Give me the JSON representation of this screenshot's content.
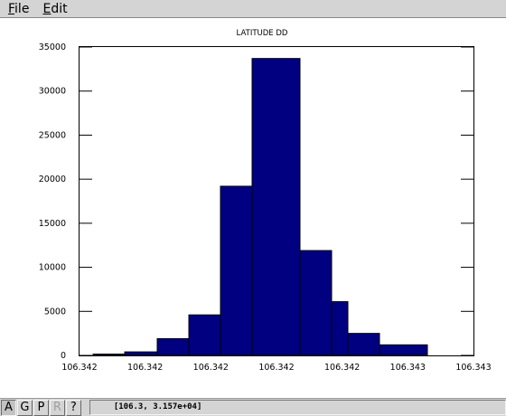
{
  "menubar": {
    "file": {
      "mnemonic": "F",
      "rest": "ile"
    },
    "edit": {
      "mnemonic": "E",
      "rest": "dit"
    }
  },
  "chart_data": {
    "type": "bar",
    "title": "LATITUDE DD",
    "xlabel": "",
    "ylabel": "",
    "ylim": [
      0,
      35000
    ],
    "yticks": [
      0,
      5000,
      10000,
      15000,
      20000,
      25000,
      30000,
      35000
    ],
    "xtick_labels": [
      "106.342",
      "106.342",
      "106.342",
      "106.342",
      "106.342",
      "106.343",
      "106.343"
    ],
    "grid": false,
    "bar_color": "#000080",
    "bins": [
      {
        "value": 150
      },
      {
        "value": 400
      },
      {
        "value": 1900
      },
      {
        "value": 4600
      },
      {
        "value": 19200
      },
      {
        "value": 33700
      },
      {
        "value": 11900
      },
      {
        "value": 6100
      },
      {
        "value": 2500
      },
      {
        "value": 1200
      }
    ]
  },
  "statusbar": {
    "buttons": [
      {
        "label": "A",
        "state": "active"
      },
      {
        "label": "G",
        "state": "normal"
      },
      {
        "label": "P",
        "state": "normal"
      },
      {
        "label": "R",
        "state": "disabled"
      },
      {
        "label": "?",
        "state": "normal"
      }
    ],
    "coordinates": "[106.3, 3.157e+04]"
  }
}
